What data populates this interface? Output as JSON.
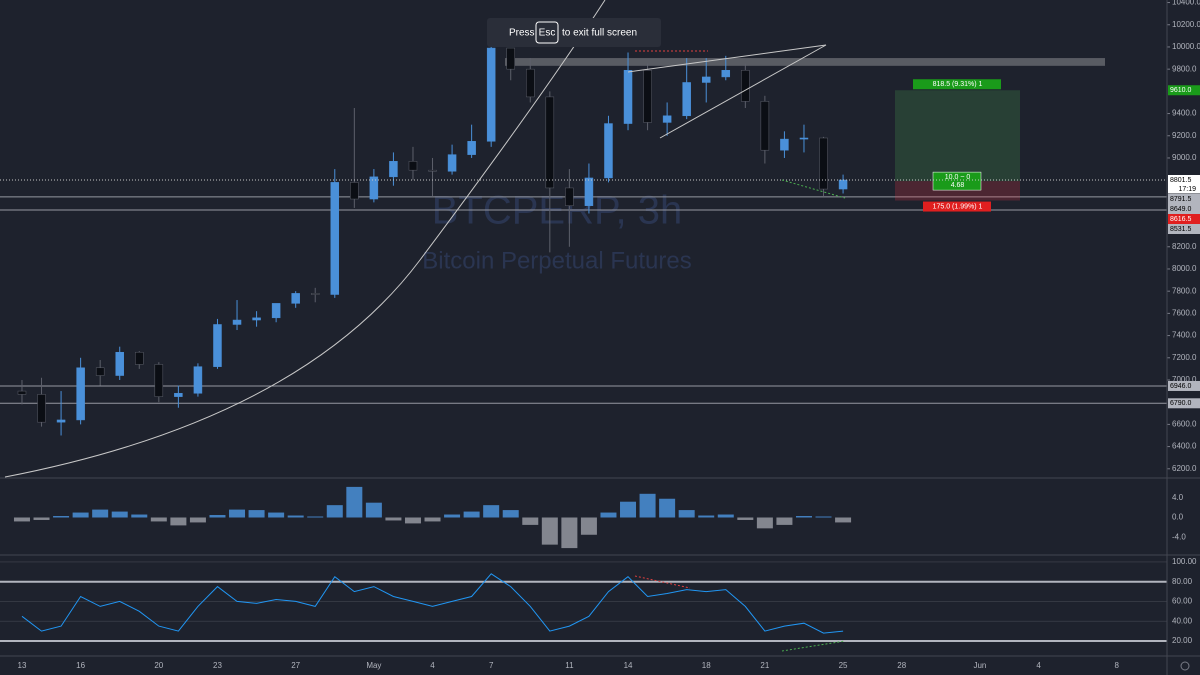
{
  "banner": {
    "press": "Press",
    "key": "Esc",
    "rest": "to exit full screen"
  },
  "chart_data": [
    {
      "type": "candlestick",
      "title": "BTCPERP, 3h",
      "subtitle": "Bitcoin Perpetual Futures",
      "categories": [
        "13",
        null,
        null,
        "16",
        null,
        null,
        null,
        "20",
        null,
        null,
        "23",
        null,
        null,
        null,
        "27",
        null,
        null,
        null,
        "May",
        null,
        null,
        "4",
        null,
        null,
        "7",
        null,
        null,
        null,
        "11",
        null,
        null,
        "14",
        null,
        null,
        null,
        "18",
        null,
        null,
        "21",
        null,
        null,
        null,
        "25",
        null,
        null,
        "28",
        null,
        null,
        null,
        "Jun",
        null,
        null,
        "4",
        null,
        null,
        null,
        "8",
        null
      ],
      "open": [
        6900,
        6870,
        6620,
        6640,
        7110,
        7040,
        7250,
        7140,
        6850,
        6880,
        7120,
        7500,
        7540,
        7560,
        7690,
        7780,
        7770,
        8780,
        8630,
        8830,
        8970,
        8890,
        8880,
        9030,
        9150,
        9990,
        9800,
        9550,
        8730,
        8570,
        8820,
        9310,
        9790,
        9320,
        9380,
        9680,
        9730,
        9790,
        9510,
        9070,
        9170,
        9180,
        8720,
        null,
        null,
        null,
        null,
        null,
        null,
        null,
        null,
        null,
        null,
        null,
        null,
        null,
        null,
        null
      ],
      "high": [
        7000,
        7020,
        6900,
        7200,
        7180,
        7300,
        7260,
        7160,
        6950,
        7150,
        7550,
        7720,
        7620,
        7650,
        7800,
        7830,
        8900,
        9450,
        8900,
        9050,
        9100,
        9000,
        9120,
        9300,
        10050,
        9990,
        9900,
        9600,
        8900,
        8950,
        9380,
        9950,
        9850,
        9500,
        9900,
        9900,
        9920,
        9850,
        9560,
        9240,
        9300,
        9190,
        8850,
        null,
        null,
        null,
        null,
        null,
        null,
        null,
        null,
        null,
        null,
        null,
        null,
        null,
        null,
        null
      ],
      "low": [
        6780,
        6580,
        6500,
        6600,
        6950,
        7000,
        7100,
        6800,
        6750,
        6850,
        7100,
        7450,
        7480,
        7520,
        7650,
        7700,
        7740,
        8550,
        8600,
        8750,
        8800,
        8650,
        8850,
        9000,
        9100,
        9700,
        9500,
        8150,
        8200,
        8500,
        8780,
        9250,
        9250,
        9200,
        9350,
        9500,
        9700,
        9450,
        8950,
        9000,
        9050,
        8650,
        8680,
        null,
        null,
        null,
        null,
        null,
        null,
        null,
        null,
        null,
        null,
        null,
        null,
        null,
        null,
        null
      ],
      "close": [
        6870,
        6620,
        6640,
        7110,
        7040,
        7250,
        7140,
        6850,
        6880,
        7120,
        7500,
        7540,
        7560,
        7690,
        7780,
        7770,
        8780,
        8630,
        8830,
        8970,
        8890,
        8880,
        9030,
        9150,
        9990,
        9800,
        9550,
        8730,
        8570,
        8820,
        9310,
        9790,
        9320,
        9380,
        9680,
        9730,
        9790,
        9510,
        9070,
        9170,
        9180,
        8720,
        8801.5,
        null,
        null,
        null,
        null,
        null,
        null,
        null,
        null,
        null,
        null,
        null,
        null,
        null,
        null,
        null
      ],
      "up_color": "#4a90d9",
      "down_color": "#0b0e14",
      "ylim": [
        6126,
        10423
      ],
      "yticks": [
        {
          "value": 10400,
          "label": "10400.0"
        },
        {
          "value": 10200,
          "label": "10200.0"
        },
        {
          "value": 10000,
          "label": "10000.0"
        },
        {
          "value": 9800,
          "label": "9800.0"
        },
        {
          "value": 9400,
          "label": "9400.0"
        },
        {
          "value": 9200,
          "label": "9200.0"
        },
        {
          "value": 9000,
          "label": "9000.0"
        },
        {
          "value": 8200,
          "label": "8200.0"
        },
        {
          "value": 8000,
          "label": "8000.0"
        },
        {
          "value": 7800,
          "label": "7800.0"
        },
        {
          "value": 7600,
          "label": "7600.0"
        },
        {
          "value": 7400,
          "label": "7400.0"
        },
        {
          "value": 7200,
          "label": "7200.0"
        },
        {
          "value": 7000,
          "label": "7000.0"
        },
        {
          "value": 6600,
          "label": "6600.0"
        },
        {
          "value": 6400,
          "label": "6400.0"
        },
        {
          "value": 6200,
          "label": "6200.0"
        }
      ],
      "last": {
        "value": 8801.5,
        "label": "8801.5",
        "countdown": "17:19"
      },
      "price_labels": [
        {
          "value": 9610,
          "label": "9610.0",
          "color": "#1a9b1a",
          "line": false
        },
        {
          "value": 8791.5,
          "label": "8791.5",
          "color": "#b2b5be",
          "line": false
        },
        {
          "value": 8649,
          "label": "8649.0",
          "color": "#b2b5be",
          "line": true
        },
        {
          "value": 8616.5,
          "label": "8616.5",
          "color": "#e01f1f",
          "line": false
        },
        {
          "value": 8531.5,
          "label": "8531.5",
          "color": "#b2b5be",
          "line": true
        },
        {
          "value": 6946,
          "label": "6946.0",
          "color": "#b2b5be",
          "line": true
        },
        {
          "value": 6790,
          "label": "6790.0",
          "color": "#b2b5be",
          "line": true
        }
      ],
      "zone": [
        9830,
        9900
      ],
      "position": {
        "target": 9610,
        "entry": 8791.5,
        "stop": 8616.5,
        "target_label": "818.5 (9.31%) 1",
        "center_label": [
          "10.0 ~ 0",
          "4.68"
        ],
        "stop_label": "175.0 (1.99%) 1"
      }
    },
    {
      "type": "histogram",
      "values": [
        -0.8,
        -0.5,
        0.3,
        1.0,
        1.6,
        1.2,
        0.6,
        -0.8,
        -1.6,
        -1.0,
        0.5,
        1.6,
        1.5,
        1.0,
        0.4,
        0.2,
        2.5,
        6.2,
        3.0,
        -0.6,
        -1.2,
        -0.8,
        0.6,
        1.2,
        2.5,
        1.5,
        -1.5,
        -5.5,
        -6.2,
        -3.5,
        1.0,
        3.2,
        4.8,
        3.8,
        1.5,
        0.4,
        0.6,
        -0.5,
        -2.2,
        -1.5,
        0.3,
        0.2,
        -1.0,
        null,
        null,
        null,
        null,
        null,
        null,
        null,
        null,
        null,
        null,
        null,
        null,
        null,
        null,
        null
      ],
      "up_color": "#4a90d9",
      "down_color": "#9598a1",
      "ylim": [
        -7.6,
        7.8
      ],
      "yticks": [
        {
          "value": 4,
          "label": "4.0"
        },
        {
          "value": 0,
          "label": "0.0"
        },
        {
          "value": -4,
          "label": "-4.0"
        }
      ]
    },
    {
      "type": "line",
      "values": [
        45,
        30,
        35,
        65,
        55,
        60,
        50,
        35,
        30,
        55,
        75,
        60,
        58,
        62,
        60,
        55,
        85,
        70,
        75,
        65,
        60,
        55,
        60,
        65,
        88,
        75,
        55,
        30,
        35,
        45,
        70,
        85,
        65,
        68,
        72,
        70,
        72,
        55,
        30,
        35,
        38,
        28,
        30,
        null,
        null,
        null,
        null,
        null,
        null,
        null,
        null,
        null,
        null,
        null,
        null,
        null,
        null,
        null
      ],
      "color": "#2196f3",
      "ylim": [
        5.8,
        106
      ],
      "yticks": [
        {
          "value": 100,
          "label": "100.00"
        },
        {
          "value": 80,
          "label": "80.00"
        },
        {
          "value": 60,
          "label": "60.00"
        },
        {
          "value": 40,
          "label": "40.00"
        },
        {
          "value": 20,
          "label": "20.00"
        }
      ],
      "levels": [
        80,
        20
      ]
    }
  ]
}
